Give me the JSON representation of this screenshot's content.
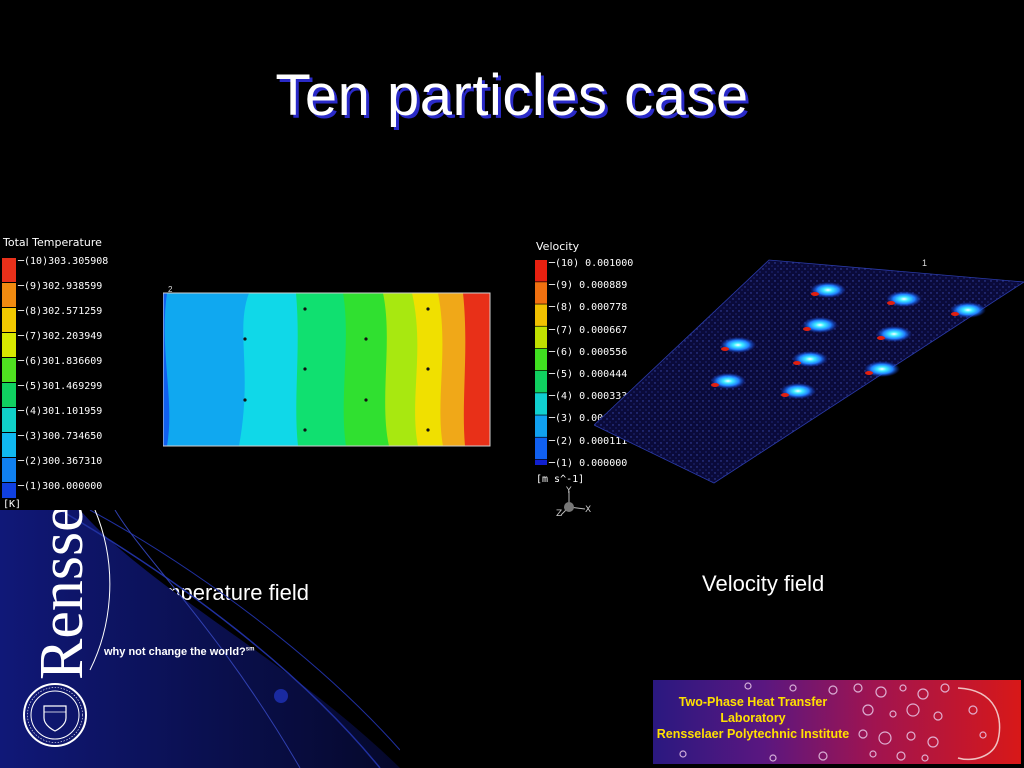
{
  "slide": {
    "title": "Ten particles case",
    "captions": {
      "temperature": "Temperature field",
      "velocity": "Velocity field"
    }
  },
  "temperature_plot": {
    "legend_title": "Total Temperature",
    "unit": "[K]",
    "levels": [
      "(10)303.305908",
      "(9)302.938599",
      "(8)302.571259",
      "(7)302.203949",
      "(6)301.836609",
      "(5)301.469299",
      "(4)301.101959",
      "(3)300.734650",
      "(2)300.367310",
      "(1)300.000000"
    ],
    "colors": [
      "#e8301a",
      "#f08a10",
      "#f2c800",
      "#d8e800",
      "#50e020",
      "#10d060",
      "#10d0c8",
      "#10b8f0",
      "#1080f0",
      "#1040e0"
    ],
    "corner_marker": "2"
  },
  "velocity_plot": {
    "legend_title": "Velocity",
    "unit": "[m s^-1]",
    "levels": [
      "(10) 0.001000",
      "(9) 0.000889",
      "(8) 0.000778",
      "(7) 0.000667",
      "(6) 0.000556",
      "(5) 0.000444",
      "(4) 0.000333",
      "(3) 0.000222",
      "(2) 0.000111",
      "(1) 0.000000"
    ],
    "colors": [
      "#e82010",
      "#f07010",
      "#f0c000",
      "#c0e000",
      "#40e020",
      "#10d060",
      "#10d0d0",
      "#10a0f0",
      "#1060f0",
      "#1020d0"
    ],
    "corner_marker": "1",
    "axes": {
      "x": "X",
      "y": "Y",
      "z": "Z"
    }
  },
  "branding": {
    "wordmark": "Rensselaer",
    "tagline": "why not change the world?",
    "trademark": "sm",
    "seal_name": "seal-emblem",
    "lab_lines": [
      "Two-Phase Heat Transfer",
      "Laboratory",
      "Rensselaer Polytechnic Institute"
    ]
  },
  "theme": {
    "title_shadow": "#2a2ac8",
    "lab_text": "#ffe000",
    "slide_bg": "#000000"
  }
}
